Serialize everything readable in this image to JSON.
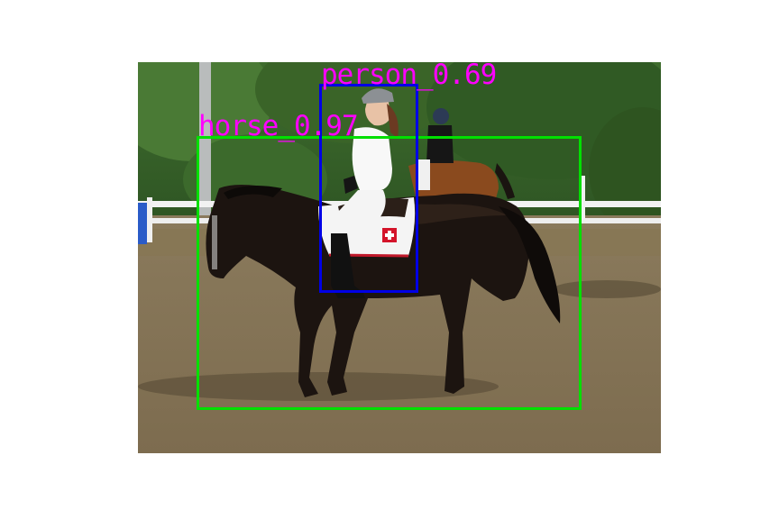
{
  "detections": [
    {
      "label": "horse_0.97",
      "class": "horse",
      "score": 0.97,
      "color": "#00e000"
    },
    {
      "label": "person_0.69",
      "class": "person",
      "score": 0.69,
      "color": "#0000e6"
    }
  ],
  "label_color": "#ff00ff",
  "scene": {
    "saddle_pad_icon": "swiss-cross-icon"
  }
}
